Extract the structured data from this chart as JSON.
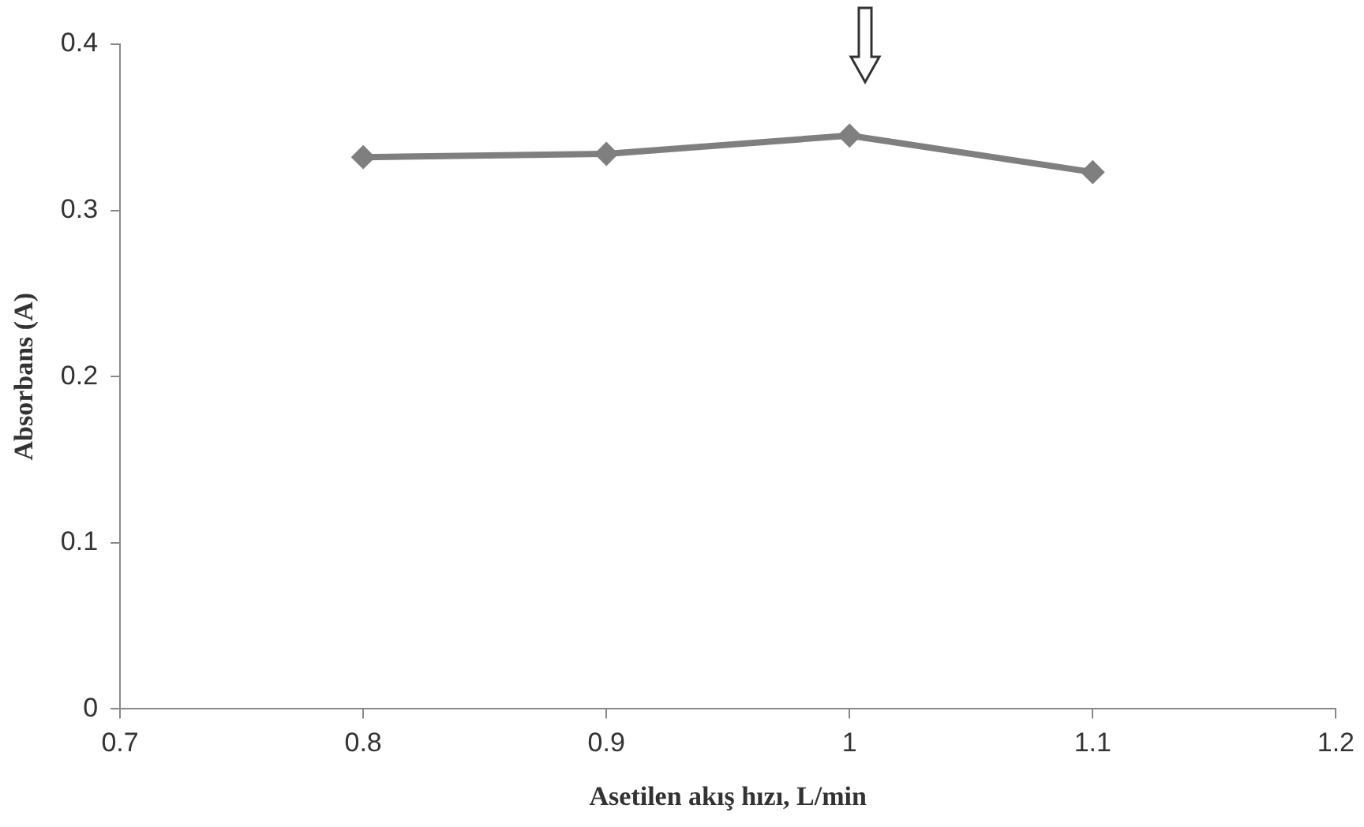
{
  "chart_data": {
    "type": "line",
    "xlabel": "Asetilen akış hızı, L/min",
    "ylabel": "Absorbans (A)",
    "x": [
      0.8,
      0.9,
      1.0,
      1.1
    ],
    "series": [
      {
        "color": "#7f7f7f",
        "values": [
          0.332,
          0.334,
          0.345,
          0.323
        ]
      }
    ],
    "xlim": [
      0.7,
      1.2
    ],
    "xticks": [
      0.7,
      0.8,
      0.9,
      1,
      1.1,
      1.2
    ],
    "ylim": [
      0,
      0.4
    ],
    "yticks": [
      0,
      0.1,
      0.2,
      0.3,
      0.4
    ],
    "grid": false,
    "legend": false,
    "marker": "diamond",
    "line_style": "solid"
  }
}
